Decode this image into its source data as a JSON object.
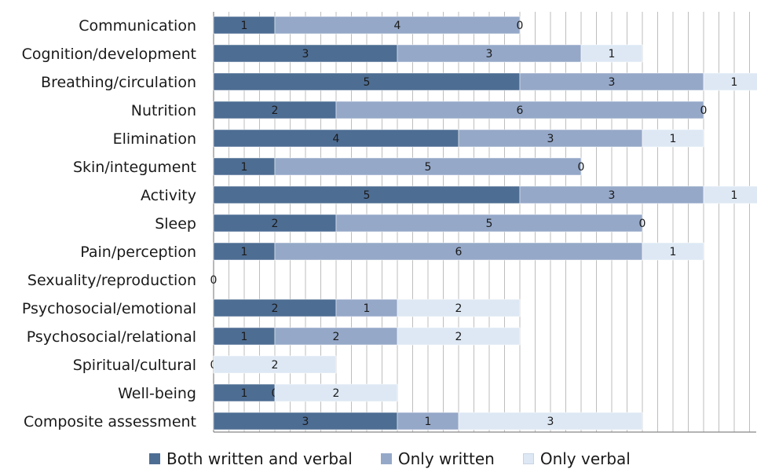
{
  "chart_data": {
    "type": "bar",
    "orientation": "horizontal",
    "stacked": true,
    "categories": [
      "Communication",
      "Cognition/development",
      "Breathing/circulation",
      "Nutrition",
      "Elimination",
      "Skin/integument",
      "Activity",
      "Sleep",
      "Pain/perception",
      "Sexuality/reproduction",
      "Psychosocial/emotional",
      "Psychosocial/relational",
      "Spiritual/cultural",
      "Well-being",
      "Composite assessment"
    ],
    "series": [
      {
        "name": "Both written and verbal",
        "color": "#4e6d93",
        "values": [
          1,
          3,
          5,
          2,
          4,
          1,
          5,
          2,
          1,
          0,
          2,
          1,
          0,
          1,
          3
        ]
      },
      {
        "name": "Only written",
        "color": "#95a8c8",
        "values": [
          4,
          3,
          3,
          6,
          3,
          5,
          3,
          5,
          6,
          0,
          1,
          2,
          0,
          0,
          1
        ]
      },
      {
        "name": "Only verbal",
        "color": "#dde8f4",
        "values": [
          0,
          1,
          1,
          0,
          1,
          0,
          1,
          0,
          1,
          0,
          2,
          2,
          2,
          2,
          3
        ]
      }
    ],
    "labels": [
      [
        "1",
        "4",
        "0"
      ],
      [
        "3",
        "3",
        "1"
      ],
      [
        "5",
        "3",
        "1"
      ],
      [
        "2",
        "6",
        "0"
      ],
      [
        "4",
        "3",
        "1"
      ],
      [
        "1",
        "5",
        "0"
      ],
      [
        "5",
        "3",
        "1"
      ],
      [
        "2",
        "5",
        "0"
      ],
      [
        "1",
        "6",
        "1"
      ],
      [
        "0",
        "",
        ""
      ],
      [
        "2",
        "1",
        "2"
      ],
      [
        "1",
        "2",
        "2"
      ],
      [
        "0",
        "",
        "2"
      ],
      [
        "1",
        "0",
        "2"
      ],
      [
        "3",
        "1",
        "3"
      ]
    ],
    "xlim": [
      0,
      9
    ],
    "grid": true,
    "legend": "bottom",
    "title": "",
    "xlabel": "",
    "ylabel": ""
  }
}
